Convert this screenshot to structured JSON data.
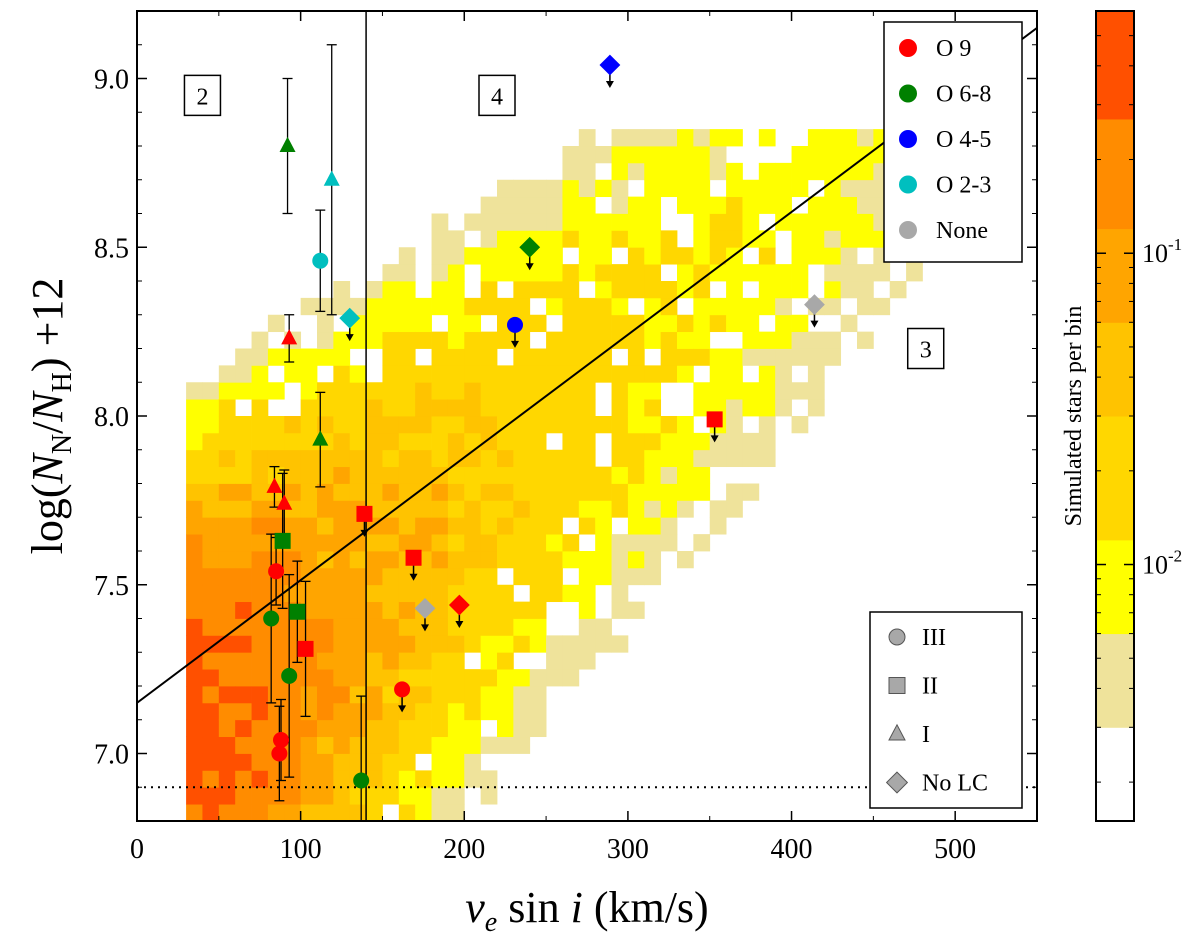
{
  "chart_data": {
    "type": "scatter",
    "xlabel_parts": {
      "v": "v",
      "sub": "e",
      "rest": " sin ",
      "i": "i",
      "units": " (km/s)"
    },
    "ylabel_parts": {
      "pre": "log(",
      "N1": "N",
      "sub1": "N",
      "slash": "/",
      "N2": "N",
      "sub2": "H",
      "post": ") +12"
    },
    "xlim": [
      0,
      550
    ],
    "ylim": [
      6.8,
      9.2
    ],
    "x_ticks": [
      0,
      100,
      200,
      300,
      400,
      500
    ],
    "x_tick_labels": [
      "0",
      "100",
      "200",
      "300",
      "400",
      "500"
    ],
    "y_ticks": [
      7.0,
      7.5,
      8.0,
      8.5,
      9.0
    ],
    "y_tick_labels": [
      "7.0",
      "7.5",
      "8.0",
      "8.5",
      "9.0"
    ],
    "grid": false,
    "region_labels": [
      {
        "text": "2",
        "x": 40,
        "y": 8.95
      },
      {
        "text": "4",
        "x": 220,
        "y": 8.95
      },
      {
        "text": "3",
        "x": 482,
        "y": 8.2
      }
    ],
    "vertical_line_x": 140,
    "diagonal_line": {
      "x": [
        0,
        550
      ],
      "y": [
        7.15,
        9.15
      ]
    },
    "detection_limit_y": 6.9,
    "colors": {
      "O9": "#ff0000",
      "O6-8": "#008000",
      "O4-5": "#0000ff",
      "O2-3": "#00bfbf",
      "None": "#a8a8a8",
      "lc_gray": "#a8a8a8"
    },
    "legend_spt": {
      "placement": "top-right",
      "entries": [
        {
          "label": "O 9",
          "color_key": "O9"
        },
        {
          "label": "O 6-8",
          "color_key": "O6-8"
        },
        {
          "label": "O 4-5",
          "color_key": "O4-5"
        },
        {
          "label": "O 2-3",
          "color_key": "O2-3"
        },
        {
          "label": "None",
          "color_key": "None"
        }
      ]
    },
    "legend_lc": {
      "placement": "bottom-right",
      "entries": [
        {
          "label": "III",
          "marker": "circle"
        },
        {
          "label": "II",
          "marker": "square"
        },
        {
          "label": "I",
          "marker": "triangle"
        },
        {
          "label": "No LC",
          "marker": "diamond"
        }
      ]
    },
    "colorbar": {
      "label": "Simulated stars per bin",
      "scale": "log",
      "range": [
        0.0015,
        0.6
      ],
      "ticks": [
        {
          "value": 0.1,
          "base": "10",
          "exp": "-1"
        },
        {
          "value": 0.01,
          "base": "10",
          "exp": "-2"
        }
      ],
      "levels": [
        {
          "from": 0.0015,
          "to": 0.003,
          "color": "#ffffff"
        },
        {
          "from": 0.003,
          "to": 0.006,
          "color": "#efe39b"
        },
        {
          "from": 0.006,
          "to": 0.012,
          "color": "#ffff00"
        },
        {
          "from": 0.012,
          "to": 0.03,
          "color": "#ffd700"
        },
        {
          "from": 0.03,
          "to": 0.06,
          "color": "#ffc300"
        },
        {
          "from": 0.06,
          "to": 0.12,
          "color": "#ffa500"
        },
        {
          "from": 0.12,
          "to": 0.27,
          "color": "#ff8c00"
        },
        {
          "from": 0.27,
          "to": 0.6,
          "color": "#ff5000"
        }
      ]
    },
    "density_bins": {
      "x_start": 30,
      "y_start": 6.8,
      "dx": 10,
      "dy": 0.05,
      "x_end": 530
    },
    "points": [
      {
        "x": 85,
        "y": 7.54,
        "marker": "circle",
        "sp": "O9",
        "err": [
          0.1,
          0.1
        ]
      },
      {
        "x": 88,
        "y": 7.04,
        "marker": "circle",
        "sp": "O9",
        "err": [
          0.12,
          0.12
        ]
      },
      {
        "x": 87,
        "y": 7.0,
        "marker": "circle",
        "sp": "O9",
        "err": [
          0.14,
          0.14
        ]
      },
      {
        "x": 82,
        "y": 7.4,
        "marker": "circle",
        "sp": "O6-8",
        "err": [
          0.25,
          0.25
        ]
      },
      {
        "x": 93,
        "y": 7.23,
        "marker": "circle",
        "sp": "O6-8",
        "err": [
          0.3,
          0.3
        ]
      },
      {
        "x": 137,
        "y": 6.92,
        "marker": "circle",
        "sp": "O6-8",
        "err": [
          0.25,
          0.25
        ]
      },
      {
        "x": 112,
        "y": 8.46,
        "marker": "circle",
        "sp": "O2-3",
        "err": [
          0.15,
          0.15
        ]
      },
      {
        "x": 162,
        "y": 7.19,
        "marker": "circle",
        "sp": "O9",
        "upper": true
      },
      {
        "x": 231,
        "y": 8.27,
        "marker": "circle",
        "sp": "O4-5",
        "upper": true
      },
      {
        "x": 89,
        "y": 7.63,
        "marker": "square",
        "sp": "O6-8",
        "err": [
          0.2,
          0.2
        ]
      },
      {
        "x": 98,
        "y": 7.42,
        "marker": "square",
        "sp": "O6-8",
        "err": [
          0.15,
          0.15
        ]
      },
      {
        "x": 103,
        "y": 7.31,
        "marker": "square",
        "sp": "O9",
        "err": [
          0.2,
          0.2
        ]
      },
      {
        "x": 139,
        "y": 7.71,
        "marker": "square",
        "sp": "O9",
        "upper": true
      },
      {
        "x": 169,
        "y": 7.58,
        "marker": "square",
        "sp": "O9",
        "upper": true
      },
      {
        "x": 353,
        "y": 7.99,
        "marker": "square",
        "sp": "O9",
        "upper": true
      },
      {
        "x": 92,
        "y": 8.8,
        "marker": "triangle",
        "sp": "O6-8",
        "err": [
          0.2,
          0.2
        ]
      },
      {
        "x": 119,
        "y": 8.7,
        "marker": "triangle",
        "sp": "O2-3",
        "err": [
          0.4,
          0.4
        ]
      },
      {
        "x": 93,
        "y": 8.23,
        "marker": "triangle",
        "sp": "O9",
        "err": [
          0.07,
          0.07
        ]
      },
      {
        "x": 112,
        "y": 7.93,
        "marker": "triangle",
        "sp": "O6-8",
        "err": [
          0.14,
          0.14
        ]
      },
      {
        "x": 84,
        "y": 7.79,
        "marker": "triangle",
        "sp": "O9",
        "err": [
          0.06,
          0.06
        ]
      },
      {
        "x": 90,
        "y": 7.74,
        "marker": "triangle",
        "sp": "O9",
        "err": [
          0.1,
          0.1
        ]
      },
      {
        "x": 130,
        "y": 8.29,
        "marker": "diamond",
        "sp": "O2-3",
        "upper": true
      },
      {
        "x": 240,
        "y": 8.5,
        "marker": "diamond",
        "sp": "O6-8",
        "upper": true
      },
      {
        "x": 289,
        "y": 9.04,
        "marker": "diamond",
        "sp": "O4-5",
        "upper": true
      },
      {
        "x": 414,
        "y": 8.33,
        "marker": "diamond",
        "sp": "None",
        "upper": true
      },
      {
        "x": 176,
        "y": 7.43,
        "marker": "diamond",
        "sp": "None",
        "upper": true
      },
      {
        "x": 197,
        "y": 7.44,
        "marker": "diamond",
        "sp": "O9",
        "upper": true
      }
    ]
  }
}
